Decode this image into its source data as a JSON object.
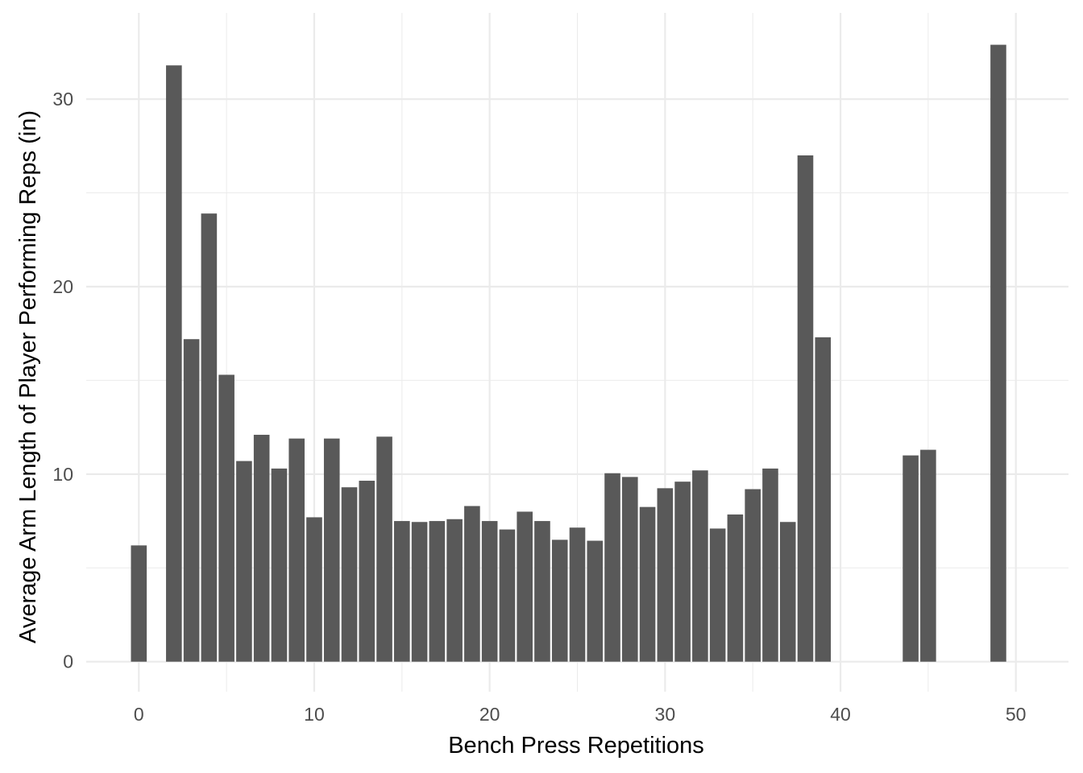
{
  "chart_data": {
    "type": "bar",
    "title": "",
    "xlabel": "Bench Press Repetitions",
    "ylabel": "Average Arm Length of Player Performing Reps (in)",
    "xlim": [
      -3,
      53
    ],
    "ylim": [
      -1.6,
      34.6
    ],
    "x_ticks": [
      0,
      10,
      20,
      30,
      40,
      50
    ],
    "y_ticks": [
      0,
      10,
      20,
      30
    ],
    "grid": true,
    "legend": "none",
    "bar_color": "#595959",
    "gridline_color": "#ebebeb",
    "x": [
      0,
      2,
      3,
      4,
      5,
      6,
      7,
      8,
      9,
      10,
      11,
      12,
      13,
      14,
      15,
      16,
      17,
      18,
      19,
      20,
      21,
      22,
      23,
      24,
      25,
      26,
      27,
      28,
      29,
      30,
      31,
      32,
      33,
      34,
      35,
      36,
      37,
      38,
      39,
      44,
      45,
      49
    ],
    "values": [
      6.2,
      31.8,
      17.2,
      23.9,
      15.3,
      10.7,
      12.1,
      10.3,
      11.9,
      7.7,
      11.9,
      9.3,
      9.65,
      12.0,
      7.5,
      7.45,
      7.5,
      7.6,
      8.3,
      7.5,
      7.05,
      8.0,
      7.5,
      6.5,
      7.15,
      6.45,
      10.05,
      9.85,
      8.25,
      9.25,
      9.6,
      10.2,
      7.1,
      7.85,
      9.2,
      10.3,
      7.45,
      27.0,
      17.3,
      11.0,
      11.3,
      32.9
    ]
  }
}
